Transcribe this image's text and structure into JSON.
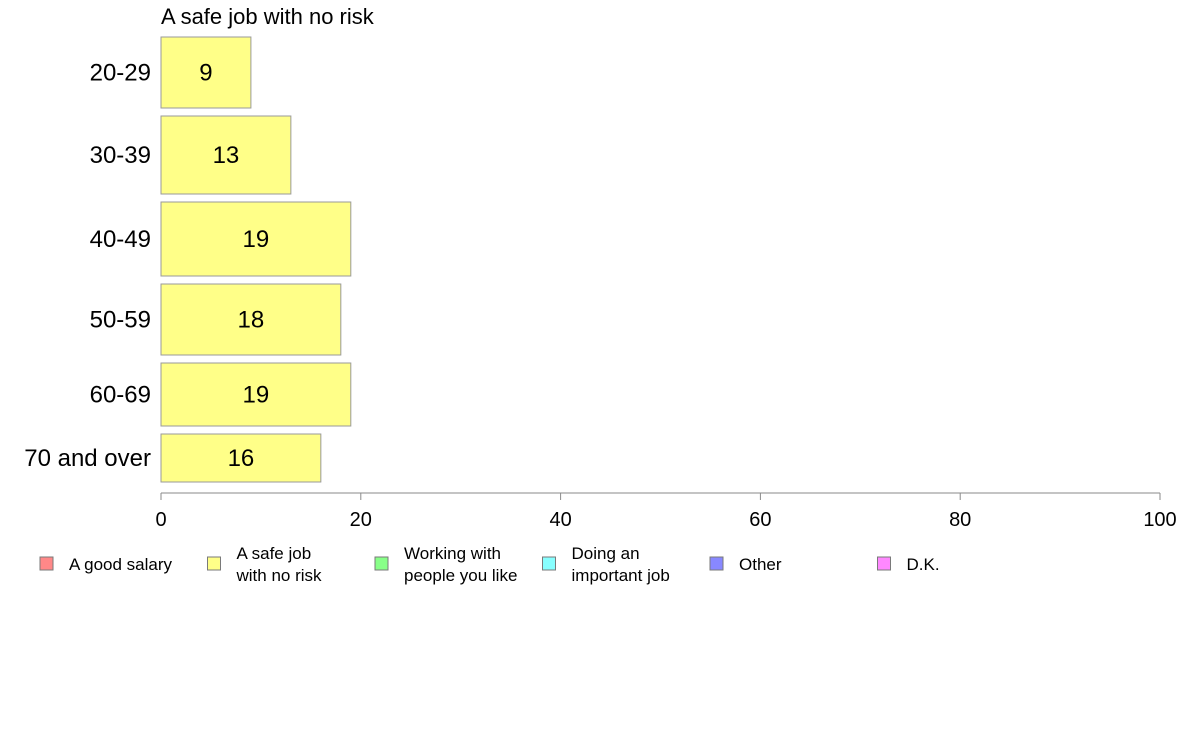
{
  "chart_data": {
    "type": "bar",
    "orientation": "horizontal",
    "title": "A safe job with no risk",
    "categories": [
      "20-29",
      "30-39",
      "40-49",
      "50-59",
      "60-69",
      "70 and over"
    ],
    "series": [
      {
        "name": "A safe job with no risk",
        "color": "#ffff88",
        "values": [
          9,
          13,
          19,
          18,
          19,
          16
        ]
      }
    ],
    "xlim": [
      0,
      100
    ],
    "xticks": [
      0,
      20,
      40,
      60,
      80,
      100
    ],
    "grid": false,
    "legend_position": "bottom",
    "legend": [
      {
        "lines": [
          "A good salary"
        ],
        "color": "#ff8888"
      },
      {
        "lines": [
          "A safe job",
          "with no risk"
        ],
        "color": "#ffff88"
      },
      {
        "lines": [
          "Working with",
          "people you like"
        ],
        "color": "#88ff88"
      },
      {
        "lines": [
          "Doing an",
          "important job"
        ],
        "color": "#88ffff"
      },
      {
        "lines": [
          "Other"
        ],
        "color": "#8888ff"
      },
      {
        "lines": [
          "D.K."
        ],
        "color": "#ff88ff"
      }
    ]
  }
}
